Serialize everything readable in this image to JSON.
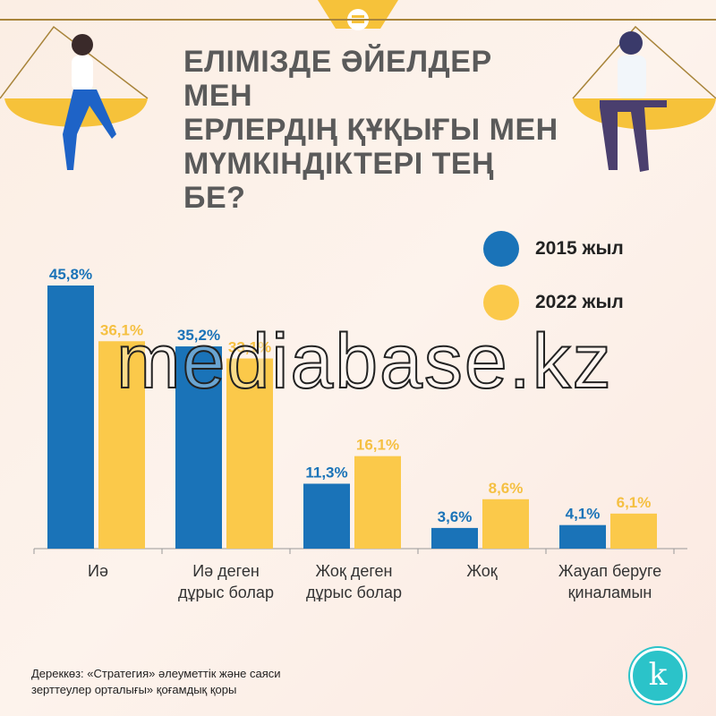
{
  "title_lines": [
    "ЕЛІМІЗДЕ ӘЙЕЛДЕР МЕН",
    "ЕРЛЕРДІҢ ҚҰҚЫҒЫ МЕН",
    "МҮМКІНДІКТЕРІ ТЕҢ БЕ?"
  ],
  "watermark": "mediabase.kz",
  "source_lines": [
    "Дереккөз: «Стратегия» әлеуметтік және саяси",
    "зерттеулер орталығы» қоғамдық қоры"
  ],
  "logo_letter": "k",
  "colors": {
    "series_2015": "#1a73b8",
    "series_2022": "#fbc94a",
    "label_2015": "#1a73b8",
    "label_2022": "#f5c042"
  },
  "chart_data": {
    "type": "bar",
    "categories": [
      [
        "Иә"
      ],
      [
        "Иә деген",
        "дұрыс болар"
      ],
      [
        "Жоқ деген",
        "дұрыс болар"
      ],
      [
        "Жоқ"
      ],
      [
        "Жауап беруге",
        "қиналамын"
      ]
    ],
    "series": [
      {
        "name": "2015 жыл",
        "values": [
          45.8,
          35.2,
          11.3,
          3.6,
          4.1
        ],
        "labels": [
          "45,8%",
          "35,2%",
          "11,3%",
          "3,6%",
          "4,1%"
        ]
      },
      {
        "name": "2022 жыл",
        "values": [
          36.1,
          33.1,
          16.1,
          8.6,
          6.1
        ],
        "labels": [
          "36,1%",
          "33,1%",
          "16,1%",
          "8,6%",
          "6,1%"
        ]
      }
    ],
    "legend": "top-right",
    "grid": false,
    "ylim": [
      0,
      50
    ]
  }
}
